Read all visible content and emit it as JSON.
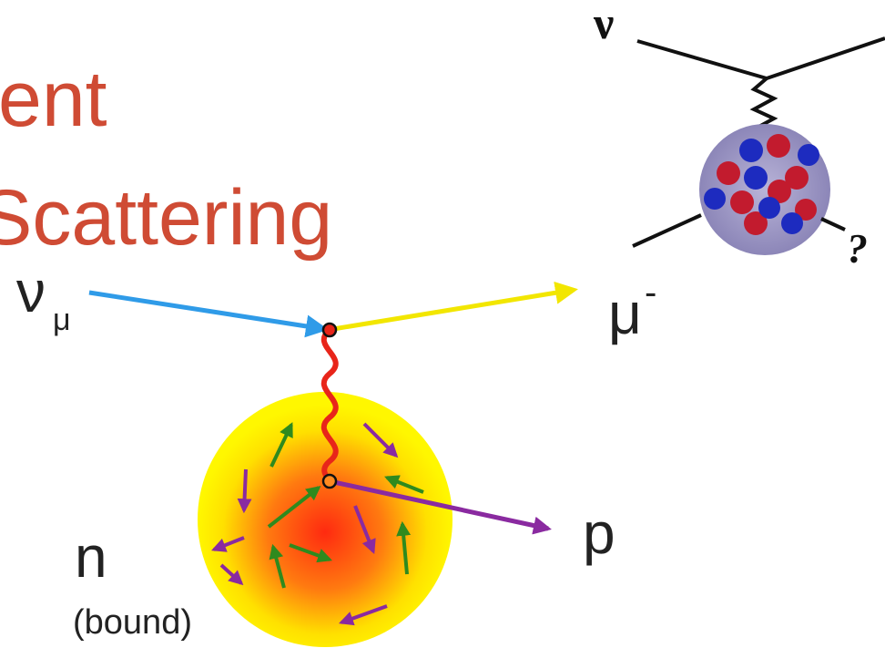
{
  "title": {
    "lines": [
      "ent",
      "Scattering"
    ]
  },
  "labels": {
    "neutrino": "ν",
    "neutrino_sub": "μ",
    "muon": "μ",
    "muon_sup": "-",
    "proton": "p",
    "neutron": "n",
    "neutron_note": "(bound)"
  },
  "inset": {
    "neutrino": "ν",
    "question": "?"
  }
}
